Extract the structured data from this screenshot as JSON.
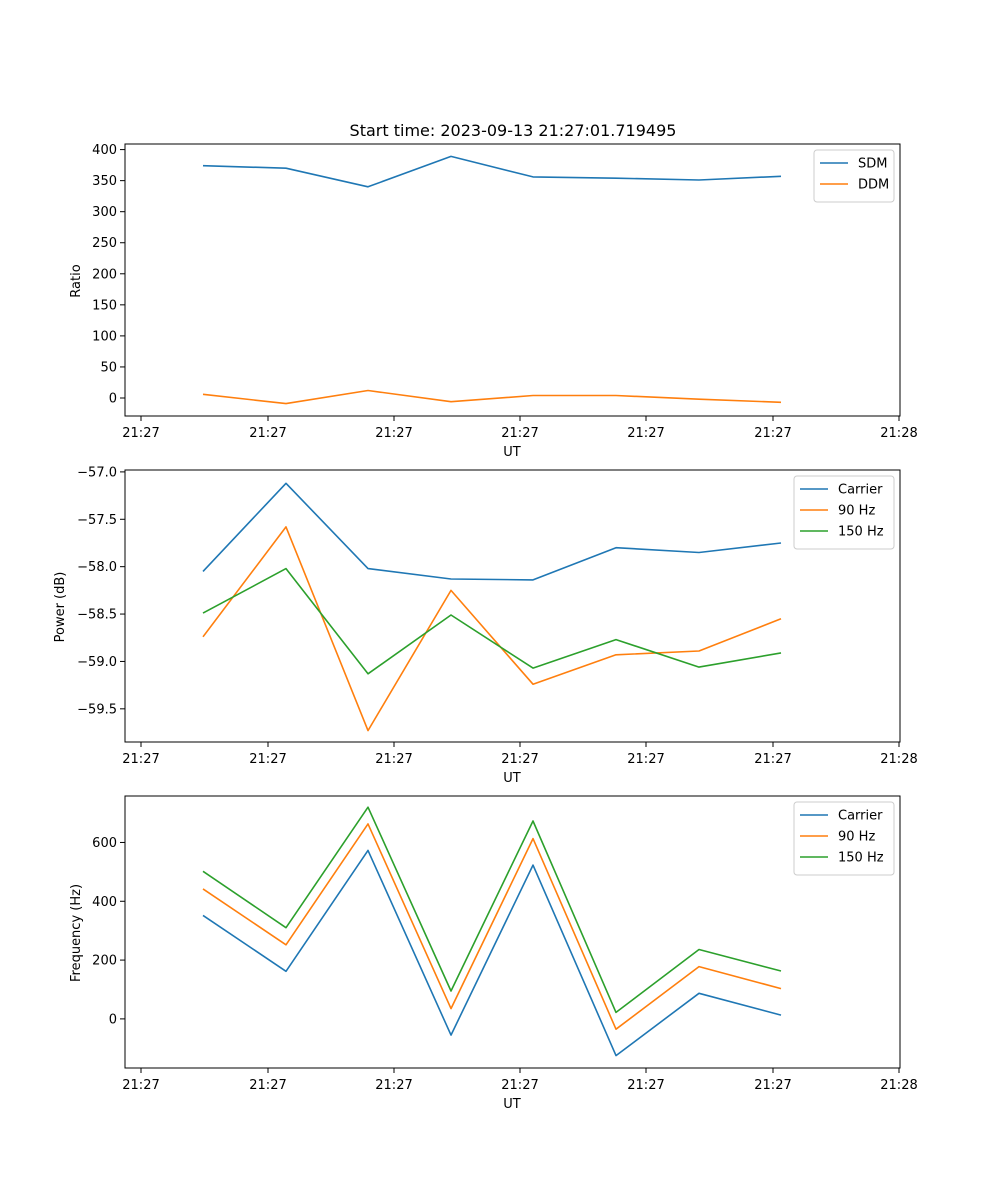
{
  "chart_data": [
    {
      "type": "line",
      "title": "Start time: 2023-09-13 21:27:01.719495",
      "xlabel": "UT",
      "ylabel": "Ratio",
      "xtick_labels": [
        "21:27",
        "21:27",
        "21:27",
        "21:27",
        "21:27",
        "21:27",
        "21:27",
        "21:28"
      ],
      "ytick_labels": [
        "0",
        "50",
        "100",
        "150",
        "200",
        "250",
        "300",
        "350",
        "400"
      ],
      "yticks": [
        0,
        50,
        100,
        150,
        200,
        250,
        300,
        350,
        400
      ],
      "ylim": [
        -29,
        409
      ],
      "legend_position": "upper-right",
      "series": [
        {
          "name": "SDM",
          "color": "#1f77b4",
          "values": [
            374,
            370,
            340,
            389,
            356,
            354,
            351,
            357
          ]
        },
        {
          "name": "DDM",
          "color": "#ff7f0e",
          "values": [
            6,
            -9,
            12,
            -6,
            4,
            4,
            -2,
            -7
          ]
        }
      ]
    },
    {
      "type": "line",
      "title": "",
      "xlabel": "UT",
      "ylabel": "Power (dB)",
      "xtick_labels": [
        "21:27",
        "21:27",
        "21:27",
        "21:27",
        "21:27",
        "21:27",
        "21:27",
        "21:28"
      ],
      "ytick_labels": [
        "−57.0",
        "−57.5",
        "−58.0",
        "−58.5",
        "−59.0",
        "−59.5"
      ],
      "yticks": [
        -57.0,
        -57.5,
        -58.0,
        -58.5,
        -59.0,
        -59.5
      ],
      "ylim": [
        -59.85,
        -56.98
      ],
      "legend_position": "upper-right",
      "series": [
        {
          "name": "Carrier",
          "color": "#1f77b4",
          "values": [
            -58.05,
            -57.12,
            -58.02,
            -58.13,
            -58.14,
            -57.8,
            -57.85,
            -57.75
          ]
        },
        {
          "name": "90 Hz",
          "color": "#ff7f0e",
          "values": [
            -58.74,
            -57.58,
            -59.73,
            -58.25,
            -59.24,
            -58.93,
            -58.89,
            -58.55
          ]
        },
        {
          "name": "150 Hz",
          "color": "#2ca02c",
          "values": [
            -58.49,
            -58.02,
            -59.13,
            -58.51,
            -59.07,
            -58.77,
            -59.06,
            -58.91
          ]
        }
      ]
    },
    {
      "type": "line",
      "title": "",
      "xlabel": "UT",
      "ylabel": "Frequency (Hz)",
      "xtick_labels": [
        "21:27",
        "21:27",
        "21:27",
        "21:27",
        "21:27",
        "21:27",
        "21:27",
        "21:28"
      ],
      "ytick_labels": [
        "0",
        "200",
        "400",
        "600"
      ],
      "yticks": [
        0,
        200,
        400,
        600
      ],
      "ylim": [
        -167,
        758
      ],
      "legend_position": "upper-right",
      "series": [
        {
          "name": "Carrier",
          "color": "#1f77b4",
          "values": [
            352,
            162,
            573,
            -55,
            523,
            -125,
            87,
            13
          ]
        },
        {
          "name": "90 Hz",
          "color": "#ff7f0e",
          "values": [
            442,
            252,
            663,
            35,
            613,
            -35,
            178,
            103
          ]
        },
        {
          "name": "150 Hz",
          "color": "#2ca02c",
          "values": [
            502,
            310,
            720,
            95,
            673,
            22,
            236,
            163
          ]
        }
      ]
    }
  ]
}
